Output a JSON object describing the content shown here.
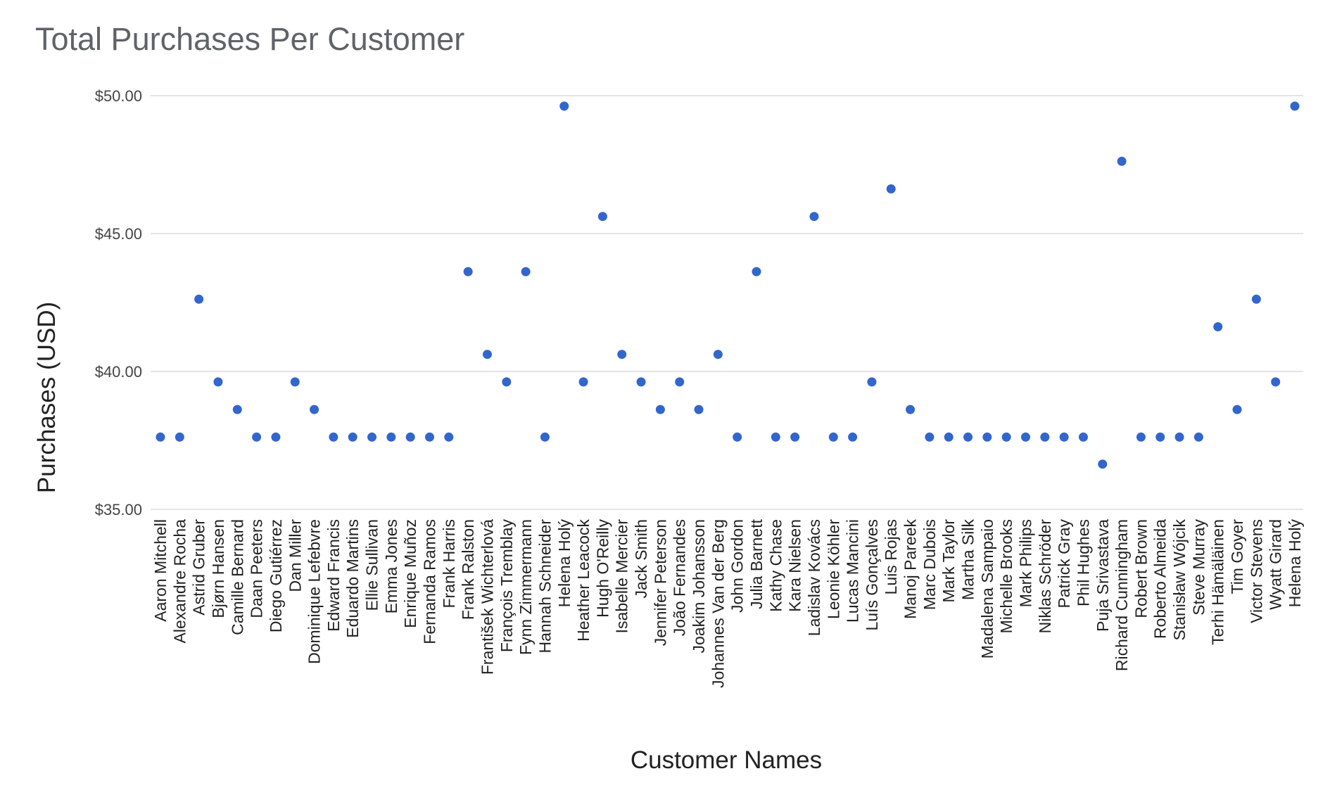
{
  "chart_data": {
    "type": "scatter",
    "title": "Total Purchases Per Customer",
    "xlabel": "Customer Names",
    "ylabel": "Purchases (USD)",
    "ylim": [
      35,
      50
    ],
    "y_ticks": [
      35,
      40,
      45,
      50
    ],
    "y_tick_labels": [
      "$35.00",
      "$40.00",
      "$45.00",
      "$50.00"
    ],
    "grid": true,
    "legend": "none",
    "marker_color": "#3366cc",
    "categories": [
      "Aaron Mitchell",
      "Alexandre Rocha",
      "Astrid Gruber",
      "Bjørn Hansen",
      "Camille Bernard",
      "Daan Peeters",
      "Diego Gutiérrez",
      "Dan Miller",
      "Dominique Lefebvre",
      "Edward Francis",
      "Eduardo Martins",
      "Ellie Sullivan",
      "Emma Jones",
      "Enrique Muñoz",
      "Fernanda Ramos",
      "Frank Harris",
      "Frank Ralston",
      "František Wichterlová",
      "François Tremblay",
      "Fynn Zimmermann",
      "Hannah Schneider",
      "Helena Holý",
      "Heather Leacock",
      "Hugh O'Reilly",
      "Isabelle Mercier",
      "Jack Smith",
      "Jennifer Peterson",
      "João Fernandes",
      "Joakim Johansson",
      "Johannes Van der Berg",
      "John Gordon",
      "Julia Barnett",
      "Kathy Chase",
      "Kara Nielsen",
      "Ladislav Kovács",
      "Leonie Köhler",
      "Lucas Mancini",
      "Luís Gonçalves",
      "Luis Rojas",
      "Manoj Pareek",
      "Marc Dubois",
      "Mark Taylor",
      "Martha Silk",
      "Madalena Sampaio",
      "Michelle Brooks",
      "Mark Philips",
      "Niklas Schröder",
      "Patrick Gray",
      "Phil Hughes",
      "Puja Srivastava",
      "Richard Cunningham",
      "Robert Brown",
      "Roberto Almeida",
      "Stanisław Wójcik",
      "Steve Murray",
      "Terhi Hämäläinen",
      "Tim Goyer",
      "Victor Stevens",
      "Wyatt Girard",
      "Helena Holý"
    ],
    "values": [
      37.62,
      37.62,
      42.62,
      39.62,
      38.62,
      37.62,
      37.62,
      39.62,
      38.62,
      37.62,
      37.62,
      37.62,
      37.62,
      37.62,
      37.62,
      37.62,
      43.62,
      40.62,
      39.62,
      43.62,
      37.62,
      49.62,
      39.62,
      45.62,
      40.62,
      39.62,
      38.62,
      39.62,
      38.62,
      40.62,
      37.62,
      43.62,
      37.62,
      37.62,
      45.62,
      37.62,
      37.62,
      39.62,
      46.62,
      38.62,
      37.62,
      37.62,
      37.62,
      37.62,
      37.62,
      37.62,
      37.62,
      37.62,
      37.62,
      36.64,
      47.62,
      37.62,
      37.62,
      37.62,
      37.62,
      41.62,
      38.62,
      42.62,
      39.62,
      49.62
    ]
  }
}
